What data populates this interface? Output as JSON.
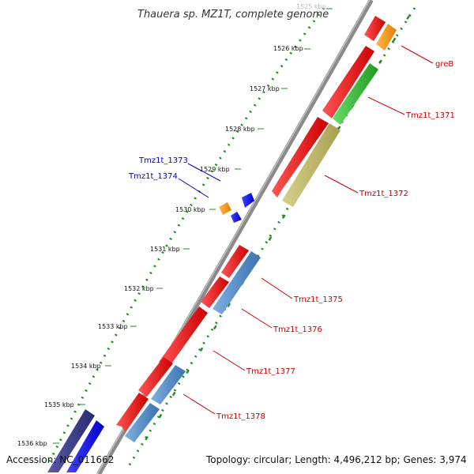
{
  "header": {
    "title": "Thauera sp. MZ1T, complete genome"
  },
  "footer": {
    "accession": "Accession: NC_011662",
    "summary": "Topology: circular; Length: 4,496,212 bp; Genes: 3,974"
  },
  "colors": {
    "backbone": "#8a8a8a",
    "gc_dots": "#1e8a1e",
    "red_cds": "#ff0000",
    "orange_cds": "#ff9900",
    "green_cds": "#33bb33",
    "olive_cds": "#bdb76b",
    "steelblue_cds": "#4a86c8",
    "blue_cds": "#0000ff",
    "darkblue_cds": "#3a3a8c",
    "label_red": "#cc0000",
    "label_blue": "#0000cc"
  },
  "ticks": [
    {
      "label": "1525 kbp"
    },
    {
      "label": "1526 kbp"
    },
    {
      "label": "1527 kbp"
    },
    {
      "label": "1528 kbp"
    },
    {
      "label": "1529 kbp"
    },
    {
      "label": "1530 kbp"
    },
    {
      "label": "1531 kbp"
    },
    {
      "label": "1532 kbp"
    },
    {
      "label": "1533 kbp"
    },
    {
      "label": "1534 kbp"
    },
    {
      "label": "1535 kbp"
    },
    {
      "label": "1536 kbp"
    }
  ],
  "gene_labels": [
    {
      "text": "greB",
      "color": "red"
    },
    {
      "text": "Tmz1t_1371",
      "color": "red"
    },
    {
      "text": "Tmz1t_1372",
      "color": "red"
    },
    {
      "text": "Tmz1t_1373",
      "color": "blue"
    },
    {
      "text": "Tmz1t_1374",
      "color": "blue"
    },
    {
      "text": "Tmz1t_1375",
      "color": "red"
    },
    {
      "text": "Tmz1t_1376",
      "color": "red"
    },
    {
      "text": "Tmz1t_1377",
      "color": "red"
    },
    {
      "text": "Tmz1t_1378",
      "color": "red"
    }
  ]
}
